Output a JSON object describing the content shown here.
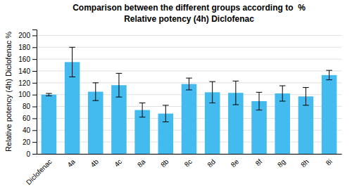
{
  "chart_data": {
    "type": "bar",
    "title": "Comparison between the different groups according to  %",
    "subtitle": "Relative potency (4h) Diclofenac",
    "ylabel": "Relative potency (4h) Diclofenac %",
    "categories": [
      "Diclofenac",
      "4a",
      "4b",
      "4c",
      "8a",
      "8b",
      "8c",
      "8d",
      "8e",
      "8f",
      "8g",
      "8h",
      "8i"
    ],
    "values": [
      100,
      155,
      105,
      116,
      74,
      68,
      118,
      104,
      103,
      89,
      102,
      97,
      133
    ],
    "errors": [
      2,
      25,
      15,
      20,
      12,
      14,
      10,
      18,
      20,
      15,
      13,
      15,
      8
    ],
    "color": "#44BBEE",
    "ylim": [
      0,
      210
    ],
    "yticks": [
      0,
      20,
      40,
      60,
      80,
      100,
      120,
      140,
      160,
      180,
      200
    ],
    "grid": true
  }
}
